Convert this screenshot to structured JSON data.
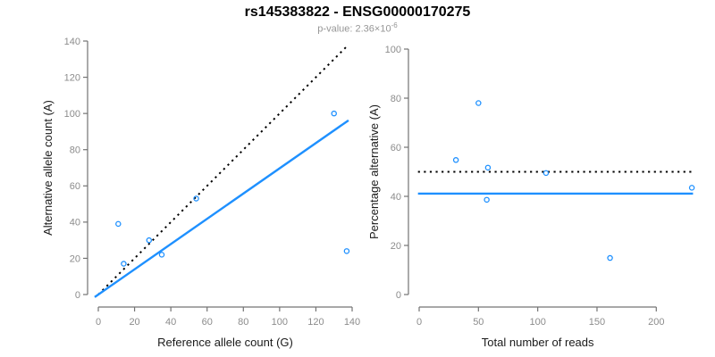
{
  "header": {
    "title": "rs145383822 - ENSG00000170275",
    "pvalue_prefix": "p-value: 2.36×10",
    "pvalue_exponent": "-6"
  },
  "colors": {
    "point_blue": "#1E90FF",
    "fit_line_blue": "#1E90FF",
    "reference_line_black": "#000000",
    "axis_gray": "#737373",
    "tick_label_gray": "#8C8C8C",
    "axis_title_color": "#1A1A1A",
    "subtitle_gray": "#969696",
    "background": "#FFFFFF"
  },
  "chart_data": [
    {
      "type": "scatter",
      "panel": "left",
      "xlabel": "Reference allele count (G)",
      "ylabel": "Alternative allele count (A)",
      "xlim": [
        0,
        140
      ],
      "ylim": [
        0,
        140
      ],
      "xticks": [
        0,
        20,
        40,
        60,
        80,
        100,
        120,
        140
      ],
      "yticks": [
        0,
        20,
        40,
        60,
        80,
        100,
        120,
        140
      ],
      "grid": false,
      "legend": null,
      "points": [
        [
          11,
          39
        ],
        [
          14,
          17
        ],
        [
          28,
          30
        ],
        [
          35,
          22
        ],
        [
          54,
          53
        ],
        [
          130,
          100
        ],
        [
          137,
          24
        ]
      ],
      "lines": [
        {
          "name": "identity-line",
          "style": "dotted",
          "color": "#000000",
          "from": [
            0,
            0
          ],
          "to": [
            136.5,
            136.5
          ]
        },
        {
          "name": "fitted-ratio-line",
          "style": "solid",
          "color": "#1E90FF",
          "from": [
            -2,
            -1.4
          ],
          "to": [
            138,
            96.2
          ]
        }
      ]
    },
    {
      "type": "scatter",
      "panel": "right",
      "xlabel": "Total number of reads",
      "ylabel": "Percentage alternative (A)",
      "xlim": [
        0,
        232
      ],
      "ylim": [
        0,
        100
      ],
      "xticks": [
        0,
        50,
        100,
        150,
        200
      ],
      "yticks": [
        0,
        20,
        40,
        60,
        80,
        100
      ],
      "grid": false,
      "legend": null,
      "points": [
        [
          50,
          78
        ],
        [
          31,
          54.8
        ],
        [
          58,
          51.7
        ],
        [
          57,
          38.6
        ],
        [
          107,
          49.5
        ],
        [
          230,
          43.5
        ],
        [
          161,
          14.9
        ]
      ],
      "lines": [
        {
          "name": "expected-50-percent-line",
          "style": "dotted",
          "color": "#000000",
          "from": [
            -1,
            50
          ],
          "to": [
            231,
            50
          ]
        },
        {
          "name": "overall-percentage-line",
          "style": "solid",
          "color": "#1E90FF",
          "from": [
            -1,
            41.1
          ],
          "to": [
            231,
            41.1
          ]
        }
      ]
    }
  ]
}
